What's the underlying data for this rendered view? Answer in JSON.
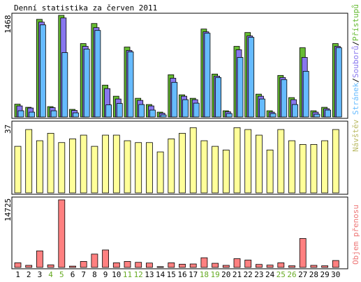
{
  "title": "Denní statistika za červen 2011",
  "colors": {
    "pristupu": "#66bb33",
    "souboru": "#8877ee",
    "stranek": "#66bbff",
    "navstev": "#ffff99",
    "objem": "#ff8080",
    "weekend_tick": "#66aa22",
    "weekday_tick": "#000000",
    "legend_navstev": "#bbbb66",
    "legend_objem": "#ee7777",
    "frame": "#000000"
  },
  "chart_data": [
    {
      "type": "bar",
      "panel": "pristupy",
      "categories": [
        "1",
        "2",
        "3",
        "4",
        "5",
        "6",
        "7",
        "8",
        "9",
        "10",
        "11",
        "12",
        "13",
        "14",
        "15",
        "16",
        "17",
        "18",
        "19",
        "20",
        "21",
        "22",
        "23",
        "24",
        "25",
        "26",
        "27",
        "28",
        "29",
        "30"
      ],
      "weekend": [
        "4",
        "5",
        "11",
        "12",
        "18",
        "19",
        "25",
        "26"
      ],
      "y_max_label": "1468",
      "ylim": [
        0,
        1468
      ],
      "legend": [
        {
          "name": "Stránek",
          "color_key": "stranek"
        },
        {
          "name": "/",
          "color_key": "weekday_tick"
        },
        {
          "name": "Souborů",
          "color_key": "souboru"
        },
        {
          "name": "/",
          "color_key": "weekday_tick"
        },
        {
          "name": "Přístupů",
          "color_key": "pristupu"
        }
      ],
      "series": [
        {
          "name": "Přístupů",
          "values": [
            185,
            140,
            1410,
            150,
            1468,
            110,
            1060,
            1350,
            460,
            300,
            1010,
            270,
            180,
            70,
            610,
            320,
            270,
            1270,
            620,
            90,
            1020,
            1220,
            330,
            90,
            600,
            280,
            1000,
            90,
            140,
            1060
          ]
        },
        {
          "name": "Souborů",
          "values": [
            160,
            130,
            1370,
            135,
            1430,
            95,
            1020,
            1290,
            410,
            260,
            960,
            240,
            160,
            55,
            560,
            300,
            250,
            1230,
            590,
            75,
            970,
            1170,
            300,
            70,
            570,
            250,
            860,
            70,
            120,
            1020
          ]
        },
        {
          "name": "Stránek",
          "values": [
            90,
            70,
            1330,
            90,
            930,
            60,
            980,
            1250,
            175,
            195,
            940,
            180,
            100,
            30,
            500,
            250,
            200,
            1210,
            570,
            50,
            860,
            1150,
            260,
            50,
            540,
            180,
            660,
            40,
            100,
            1000
          ]
        }
      ]
    },
    {
      "type": "bar",
      "panel": "navstevy",
      "categories": [
        "1",
        "2",
        "3",
        "4",
        "5",
        "6",
        "7",
        "8",
        "9",
        "10",
        "11",
        "12",
        "13",
        "14",
        "15",
        "16",
        "17",
        "18",
        "19",
        "20",
        "21",
        "22",
        "23",
        "24",
        "25",
        "26",
        "27",
        "28",
        "29",
        "30"
      ],
      "y_max_label": "37",
      "ylim": [
        0,
        37
      ],
      "legend": [
        {
          "name": "Návštěv",
          "color_key": "legend_navstev"
        }
      ],
      "series": [
        {
          "name": "Návštěv",
          "values": [
            25,
            34,
            28,
            32,
            27,
            29,
            31,
            25,
            31,
            31,
            28,
            27,
            27,
            22,
            29,
            32,
            35,
            28,
            25,
            23,
            35,
            34,
            31,
            23,
            34,
            28,
            26,
            26,
            28,
            34
          ]
        }
      ]
    },
    {
      "type": "bar",
      "panel": "objem",
      "categories": [
        "1",
        "2",
        "3",
        "4",
        "5",
        "6",
        "7",
        "8",
        "9",
        "10",
        "11",
        "12",
        "13",
        "14",
        "15",
        "16",
        "17",
        "18",
        "19",
        "20",
        "21",
        "22",
        "23",
        "24",
        "25",
        "26",
        "27",
        "28",
        "29",
        "30"
      ],
      "y_max_label": "14725",
      "ylim": [
        0,
        14725
      ],
      "legend": [
        {
          "name": "Objem přenosu",
          "color_key": "legend_objem"
        }
      ],
      "series": [
        {
          "name": "Objem přenosu",
          "values": [
            1000,
            450,
            3600,
            550,
            14725,
            280,
            1300,
            2900,
            3800,
            1000,
            1300,
            1100,
            950,
            160,
            1000,
            700,
            750,
            2100,
            900,
            450,
            1900,
            1600,
            650,
            500,
            1000,
            350,
            6300,
            450,
            350,
            1500
          ]
        }
      ]
    }
  ]
}
